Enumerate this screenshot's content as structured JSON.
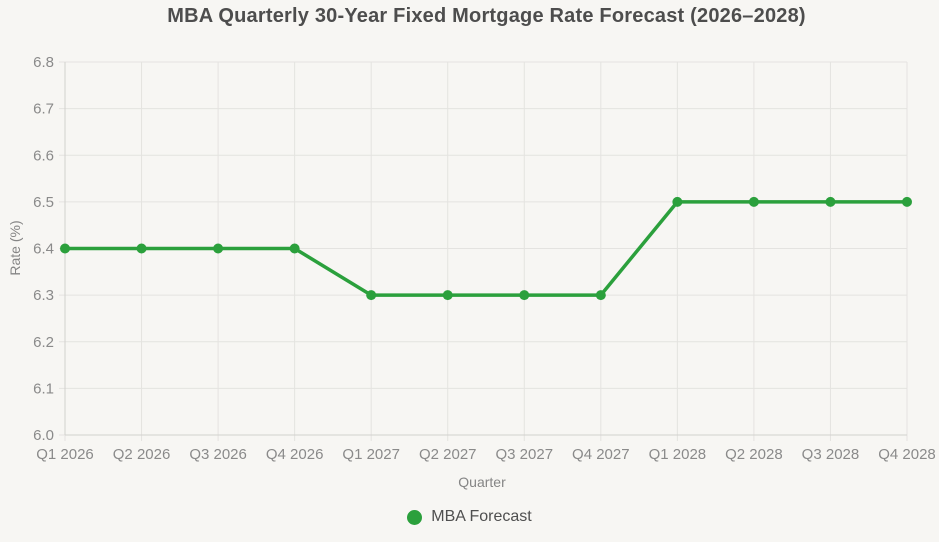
{
  "chart_data": {
    "type": "line",
    "title": "MBA Quarterly 30-Year Fixed Mortgage Rate Forecast (2026–2028)",
    "xlabel": "Quarter",
    "ylabel": "Rate (%)",
    "categories": [
      "Q1 2026",
      "Q2 2026",
      "Q3 2026",
      "Q4 2026",
      "Q1 2027",
      "Q2 2027",
      "Q3 2027",
      "Q4 2027",
      "Q1 2028",
      "Q2 2028",
      "Q3 2028",
      "Q4 2028"
    ],
    "series": [
      {
        "name": "MBA Forecast",
        "values": [
          6.4,
          6.4,
          6.4,
          6.4,
          6.3,
          6.3,
          6.3,
          6.3,
          6.5,
          6.5,
          6.5,
          6.5
        ]
      }
    ],
    "ylim": [
      6.0,
      6.8
    ],
    "ytick_step": 0.1,
    "ytick_decimals": 1,
    "grid": true,
    "legend_position": "bottom",
    "marker": "circle",
    "colors": {
      "line": "#2ba03c",
      "grid": "#e4e3e0",
      "axis": "#d2d1ce",
      "tick_label": "#8a8a8a",
      "axis_title": "#858585",
      "title": "#4d4d4d",
      "legend_label": "#4f4f4f",
      "background": "#f7f6f3"
    }
  }
}
